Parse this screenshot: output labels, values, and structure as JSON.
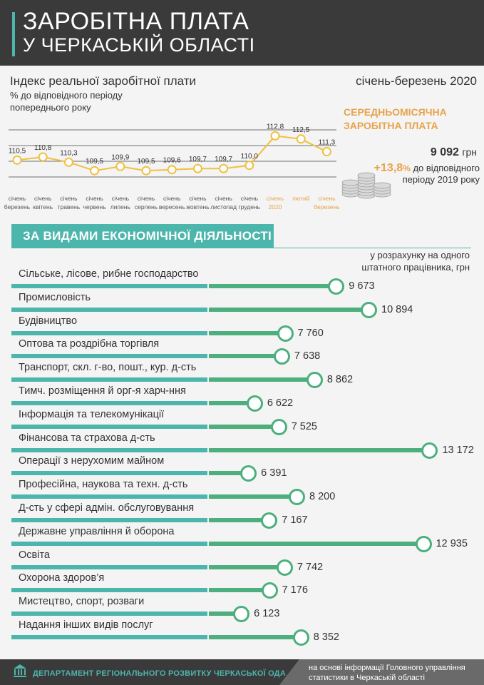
{
  "header": {
    "title_line1": "ЗАРОБІТНА ПЛАТА",
    "title_line2": "У ЧЕРКАСЬКІЙ ОБЛАСТІ"
  },
  "index_block": {
    "title": "Індекс реальної заробітної плати",
    "subtitle_line1": "% до відповідного періоду",
    "subtitle_line2": "попереднього року",
    "period": "січень-березень 2020"
  },
  "colors": {
    "teal": "#4db6ac",
    "green": "#4caf7d",
    "orange": "#e8a34a",
    "dark": "#3a3a3a",
    "line": "#f0c040"
  },
  "chart_data": [
    {
      "type": "line",
      "title": "Індекс реальної заробітної плати",
      "series": [
        {
          "values": [
            110.5,
            110.8,
            110.3,
            109.5,
            109.9,
            109.5,
            109.6,
            109.7,
            109.7,
            110.0,
            112.8,
            112.5,
            111.3
          ]
        }
      ],
      "value_labels": [
        "110,5",
        "110,8",
        "110,3",
        "109,5",
        "109,9",
        "109,5",
        "109,6",
        "109,7",
        "109,7",
        "110,0",
        "112,8",
        "112,5",
        "111,3"
      ],
      "categories": [
        [
          "січень",
          "березень"
        ],
        [
          "січень",
          "квітень"
        ],
        [
          "січень",
          "травень"
        ],
        [
          "січень",
          "червень"
        ],
        [
          "січень",
          "липень"
        ],
        [
          "січень",
          "серпень"
        ],
        [
          "січень",
          "вересень"
        ],
        [
          "січень",
          "жовтень"
        ],
        [
          "січень",
          "листопад"
        ],
        [
          "січень",
          "грудень"
        ],
        [
          "січень",
          "2020"
        ],
        [
          "лютий",
          ""
        ],
        [
          "січень",
          "березень"
        ]
      ],
      "highlighted_categories": [
        10,
        11,
        12
      ],
      "ylim": [
        108.5,
        113.5
      ],
      "grid": true
    },
    {
      "type": "bar",
      "title": "ЗА ВИДАМИ ЕКОНОМІЧНОЇ ДІЯЛЬНОСТІ",
      "note_line1": "у розрахунку на одного",
      "note_line2": "штатного працівника, грн",
      "categories": [
        "Сільське, лісове, рибне господарство",
        "Промисловість",
        "Будівництво",
        "Оптова та роздрібна торгівля",
        "Транспорт, скл. г-во, пошт., кур. д-сть",
        "Тимч. розміщення й орг-я харч-ння",
        "Інформація та телекомунікації",
        "Фінансова та страхова д-сть",
        "Операції з нерухомим майном",
        "Професійна, наукова та техн. д-сть",
        "Д-сть у сфері адмін. обслуговування",
        "Державне управління й оборона",
        "Освіта",
        "Охорона здоров’я",
        "Мистецтво, спорт, розваги",
        "Надання інших видів послуг"
      ],
      "values": [
        9673,
        10894,
        7760,
        7638,
        8862,
        6622,
        7525,
        13172,
        6391,
        8200,
        7167,
        12935,
        7742,
        7176,
        6123,
        8352
      ],
      "value_labels": [
        "9 673",
        "10 894",
        "7 760",
        "7 638",
        "8 862",
        "6 622",
        "7 525",
        "13 172",
        "6 391",
        "8 200",
        "7 167",
        "12 935",
        "7 742",
        "7 176",
        "6 123",
        "8 352"
      ]
    }
  ],
  "average": {
    "title_line1": "СЕРЕДНЬОМІСЯЧНА",
    "title_line2": "ЗАРОБІТНА ПЛАТА",
    "value": "9 092",
    "unit": "грн",
    "change_pct": "+13,8",
    "change_pct_sign": "%",
    "change_text_line1": " до відповідного",
    "change_text_line2": "періоду 2019 року"
  },
  "footer": {
    "org": "ДЕПАРТАМЕНТ РЕГІОНАЛЬНОГО РОЗВИТКУ ЧЕРКАСЬКОЇ ОДА",
    "note_line1": "на основі інформації Головного управління",
    "note_line2": "статистики в Черкаській області"
  }
}
